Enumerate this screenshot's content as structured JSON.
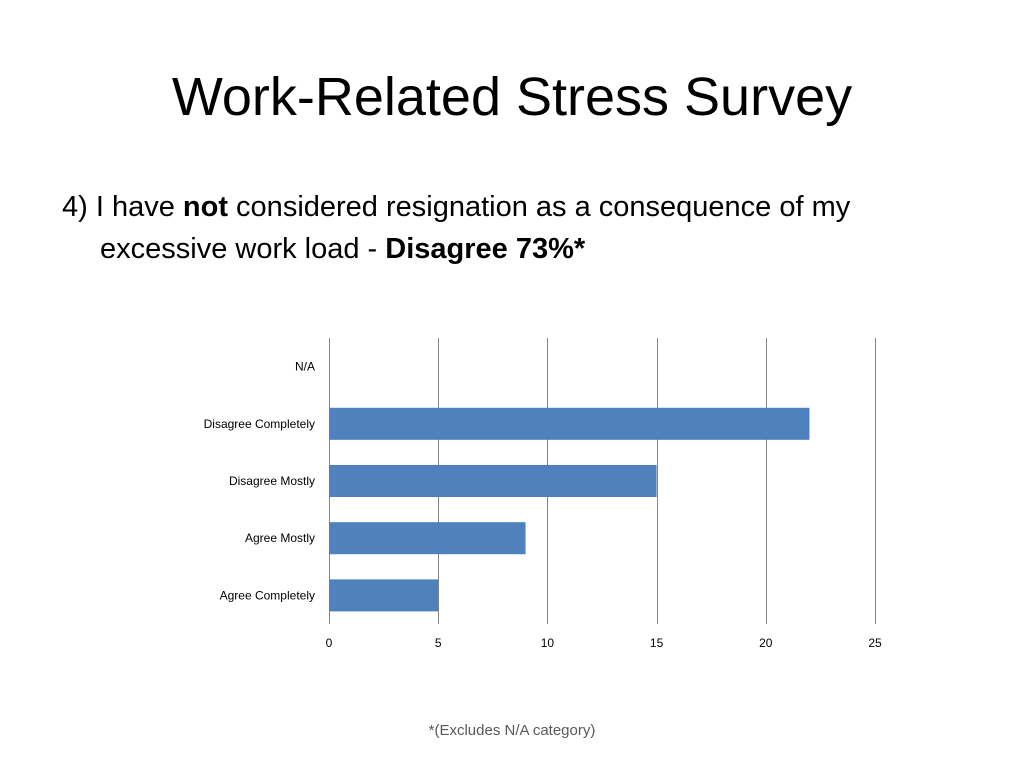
{
  "slide": {
    "title": "Work-Related Stress Survey",
    "question": {
      "prefix": "4) I have ",
      "emphasis": "not",
      "middle": " considered resignation as a consequence of my excessive work load - ",
      "answer": "Disagree 73%*"
    },
    "footnote": "*(Excludes N/A category)"
  },
  "chart_data": {
    "type": "bar",
    "orientation": "horizontal",
    "categories": [
      "N/A",
      "Disagree Completely",
      "Disagree Mostly",
      "Agree Mostly",
      "Agree Completely"
    ],
    "values": [
      0,
      22,
      15,
      9,
      5
    ],
    "xlim": [
      0,
      25
    ],
    "xticks": [
      0,
      5,
      10,
      15,
      20,
      25
    ],
    "title": "",
    "xlabel": "",
    "ylabel": "",
    "grid": "vertical",
    "legend": "none",
    "bar_color": "#4F81BD",
    "grid_color": "#868686"
  }
}
